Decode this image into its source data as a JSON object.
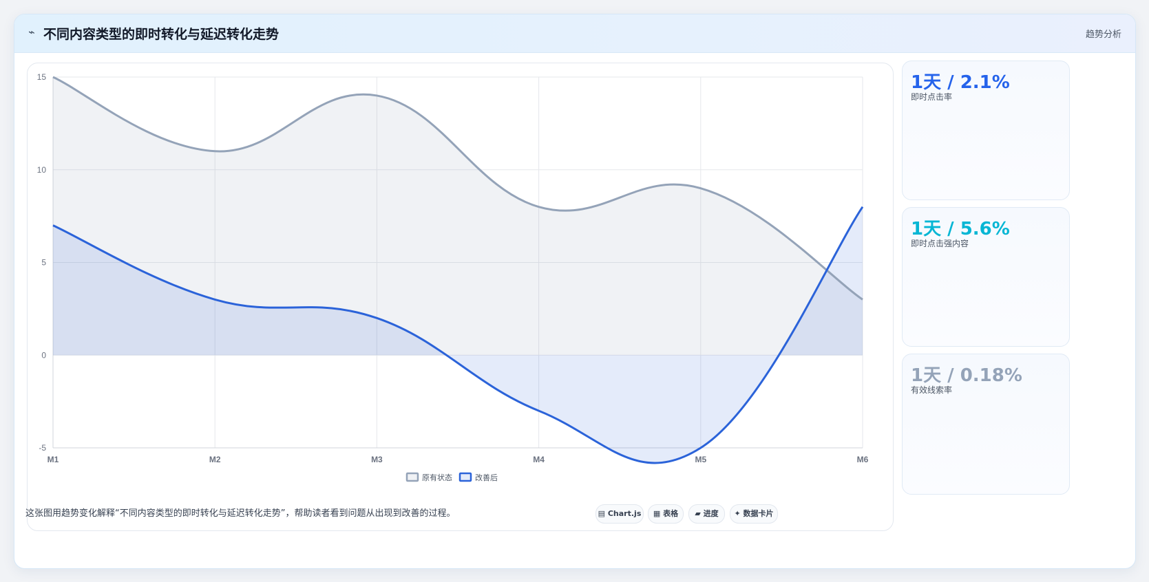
{
  "header": {
    "icon": "⌁",
    "icon_name": "trend-icon",
    "title": "不同内容类型的即时转化与延迟转化走势",
    "tag": "趋势分析"
  },
  "chart_data": {
    "type": "line",
    "categories": [
      "M1",
      "M2",
      "M3",
      "M4",
      "M5",
      "M6"
    ],
    "series": [
      {
        "name": "原有状态",
        "values": [
          15,
          11,
          14,
          8,
          9,
          3
        ],
        "color": "#94a3b8",
        "fill": "rgba(148,163,184,0.14)"
      },
      {
        "name": "改善后",
        "values": [
          7,
          3,
          2,
          -3,
          -5,
          8
        ],
        "color": "#2b63d9",
        "fill": "rgba(43,99,217,0.13)"
      }
    ],
    "ylim": [
      -5,
      15
    ],
    "yticks": [
      15,
      10,
      5,
      0,
      -5
    ],
    "grid": true,
    "area": true,
    "smooth": true,
    "legend": "bottom-center"
  },
  "kpis": [
    {
      "value": "1天 / 2.1%",
      "label": "即时点击率",
      "color": "#2563eb"
    },
    {
      "value": "1天 / 5.6%",
      "label": "即时点击强内容",
      "color": "#06b6d4"
    },
    {
      "value": "1天 / 0.18%",
      "label": "有效线索率",
      "color": "#94a3b8"
    }
  ],
  "footer": {
    "description": "这张图用趋势变化解释“不同内容类型的即时转化与延迟转化走势”，帮助读者看到问题从出现到改善的过程。",
    "chips": [
      {
        "icon": "▤",
        "label": "Chart.js"
      },
      {
        "icon": "▦",
        "label": "表格"
      },
      {
        "icon": "▰",
        "label": "进度"
      },
      {
        "icon": "✦",
        "label": "数据卡片"
      }
    ]
  }
}
